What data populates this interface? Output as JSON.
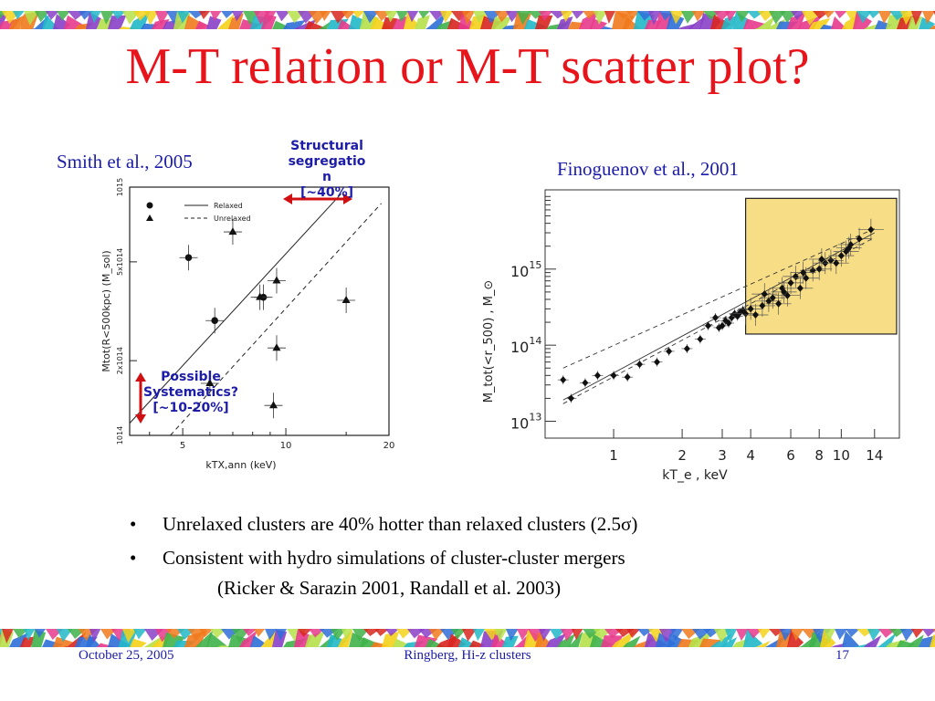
{
  "slide": {
    "title": "M-T relation or M-T scatter plot?",
    "caption_left": "Smith et al., 2005",
    "caption_right": "Finoguenov et al., 2001",
    "annotation_structural": [
      "Structural",
      "segregatio",
      "n",
      "[~40%]"
    ],
    "annotation_systematics": [
      "Possible",
      "Systematics?",
      "[~10-20%]"
    ],
    "bullets": [
      "Unrelaxed clusters are 40% hotter than relaxed clusters (2.5σ)",
      "Consistent with hydro simulations of cluster-cluster mergers"
    ],
    "bullet_continuation": "(Ricker & Sarazin 2001, Randall et al. 2003)",
    "bullet_marker": "•",
    "footer": {
      "date": "October 25, 2005",
      "center": "Ringberg, Hi-z clusters",
      "page": "17"
    },
    "colors": {
      "title": "#e8141b",
      "caption": "#1c1ca8",
      "arrow": "#d01010",
      "highlight": "#f7dd86"
    }
  },
  "chart_data": [
    {
      "type": "scatter",
      "title": "",
      "xlabel": "kT_X,ann (keV)",
      "ylabel": "M_tot(R<500kpc) (M_sol)",
      "xscale": "log",
      "yscale": "log",
      "xlim": [
        3.5,
        20
      ],
      "ylim": [
        100000000000000.0,
        1000000000000000.0
      ],
      "x_ticks": [
        5,
        10,
        20
      ],
      "y_ticks": [
        "10^14",
        "2x10^14",
        "5x10^14",
        "10^15"
      ],
      "legend": {
        "position": "top-left",
        "entries": [
          "Relaxed",
          "Unrelaxed"
        ]
      },
      "series": [
        {
          "name": "Relaxed",
          "marker": "circle",
          "line": "solid",
          "x": [
            5.2,
            6.2,
            8.6
          ],
          "y": [
            520000000000000.0,
            290000000000000.0,
            360000000000000.0
          ]
        },
        {
          "name": "Unrelaxed",
          "marker": "triangle",
          "line": "dashed",
          "x": [
            7.0,
            8.4,
            9.4,
            15.0,
            6.0,
            9.4,
            9.2
          ],
          "y": [
            660000000000000.0,
            360000000000000.0,
            420000000000000.0,
            350000000000000.0,
            162000000000000.0,
            225000000000000.0,
            132000000000000.0
          ]
        }
      ],
      "fits": {
        "Relaxed": {
          "from": [
            3.5,
            112000000000000.0
          ],
          "to": [
            14.5,
            940000000000000.0
          ]
        },
        "Unrelaxed": {
          "from": [
            4.6,
            100000000000000.0
          ],
          "to": [
            19.0,
            860000000000000.0
          ]
        }
      }
    },
    {
      "type": "scatter",
      "title": "",
      "xlabel": "kT_e , keV",
      "ylabel": "M_tot(<r_500) , M_⊙",
      "xscale": "log",
      "yscale": "log",
      "xlim": [
        0.5,
        18
      ],
      "ylim": [
        6000000000000.0,
        1.1e+16
      ],
      "x_ticks": [
        1,
        2,
        3,
        4,
        6,
        8,
        10,
        14
      ],
      "y_ticks": [
        "10^13",
        "10^14",
        "10^15"
      ],
      "highlight_region": {
        "x": [
          3.8,
          17.5
        ],
        "y": [
          140000000000000.0,
          8500000000000000.0
        ]
      },
      "series": [
        {
          "name": "",
          "x": [
            0.6,
            0.65,
            0.75,
            0.85,
            1.0,
            1.15,
            1.3,
            1.55,
            1.75,
            2.1,
            2.4,
            2.6,
            2.8,
            2.9,
            3.0,
            3.1,
            3.2,
            3.3,
            3.4,
            3.5,
            3.6,
            3.7,
            3.8,
            4.2,
            4.5,
            4.8,
            5.0,
            5.3,
            5.5,
            5.8,
            6.0,
            6.3,
            6.6,
            7.0,
            7.5,
            8.0,
            8.5,
            9.0,
            9.5,
            10.0,
            10.5,
            11.0,
            12.0,
            13.5,
            4.0,
            4.6,
            5.6,
            6.8,
            8.2,
            10.8
          ],
          "y": [
            35000000000000.0,
            20000000000000.0,
            32000000000000.0,
            40000000000000.0,
            40000000000000.0,
            38000000000000.0,
            56000000000000.0,
            60000000000000.0,
            83000000000000.0,
            90000000000000.0,
            120000000000000.0,
            180000000000000.0,
            230000000000000.0,
            170000000000000.0,
            180000000000000.0,
            210000000000000.0,
            195000000000000.0,
            230000000000000.0,
            260000000000000.0,
            240000000000000.0,
            270000000000000.0,
            290000000000000.0,
            260000000000000.0,
            250000000000000.0,
            330000000000000.0,
            380000000000000.0,
            420000000000000.0,
            350000000000000.0,
            560000000000000.0,
            450000000000000.0,
            660000000000000.0,
            800000000000000.0,
            560000000000000.0,
            760000000000000.0,
            960000000000000.0,
            1000000000000000.0,
            1200000000000000.0,
            1300000000000000.0,
            1200000000000000.0,
            1500000000000000.0,
            1700000000000000.0,
            2100000000000000.0,
            2500000000000000.0,
            3300000000000000.0,
            300000000000000.0,
            470000000000000.0,
            500000000000000.0,
            900000000000000.0,
            1350000000000000.0,
            1900000000000000.0
          ]
        }
      ],
      "fit_lines": [
        {
          "style": "dashed",
          "from": [
            0.6,
            50000000000000.0
          ],
          "to": [
            14.0,
            3400000000000000.0
          ]
        },
        {
          "style": "solid",
          "from": [
            0.6,
            19000000000000.0
          ],
          "to": [
            14.0,
            3000000000000000.0
          ]
        },
        {
          "style": "dashed",
          "from": [
            0.6,
            17000000000000.0
          ],
          "to": [
            14.0,
            2600000000000000.0
          ]
        }
      ]
    }
  ]
}
